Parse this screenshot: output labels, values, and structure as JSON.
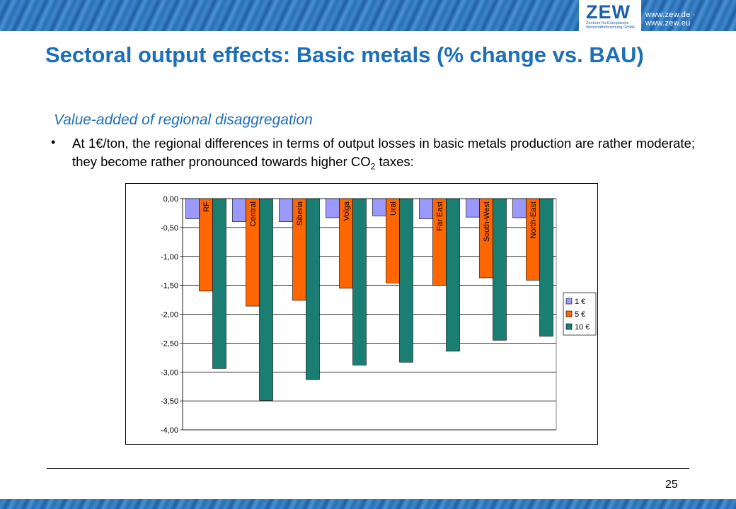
{
  "header": {
    "logo": "ZEW",
    "logo_subtitle": "Zentrum für Europäische Wirtschaftsforschung GmbH",
    "url": "www.zew.de · www.zew.eu"
  },
  "slide": {
    "title": "Sectoral output effects: Basic metals (% change vs. BAU)",
    "subtitle": "Value-added of regional disaggregation",
    "bullet_symbol": "•",
    "bullet_pre": "At 1€/ton, the regional differences in terms of output losses in basic metals production are rather moderate; they become rather pronounced towards higher CO",
    "bullet_sub": "2",
    "bullet_post": " taxes:",
    "page_number": "25"
  },
  "colors": {
    "title": "#1d6fb8",
    "series_1": "#9999ff",
    "series_2": "#ff6600",
    "series_3": "#1a7f72",
    "band": "#2a6fb5"
  },
  "chart_data": {
    "type": "bar",
    "categories": [
      "RF",
      "Central",
      "Siberia",
      "Volga",
      "Ural",
      "Far East",
      "South-West",
      "North-East"
    ],
    "series": [
      {
        "name": "1 €",
        "values": [
          -0.35,
          -0.4,
          -0.4,
          -0.33,
          -0.3,
          -0.35,
          -0.32,
          -0.33
        ]
      },
      {
        "name": "5 €",
        "values": [
          -1.6,
          -1.86,
          -1.76,
          -1.55,
          -1.46,
          -1.5,
          -1.37,
          -1.41
        ]
      },
      {
        "name": "10 €",
        "values": [
          -2.94,
          -3.49,
          -3.13,
          -2.88,
          -2.83,
          -2.64,
          -2.45,
          -2.38
        ]
      }
    ],
    "yticks": [
      "0,00",
      "-0,50",
      "-1,00",
      "-1,50",
      "-2,00",
      "-2,50",
      "-3,00",
      "-3,50",
      "-4,00"
    ],
    "ylim": [
      -4,
      0
    ],
    "legend_position": "right",
    "category_labels": "rotated inside bars"
  }
}
